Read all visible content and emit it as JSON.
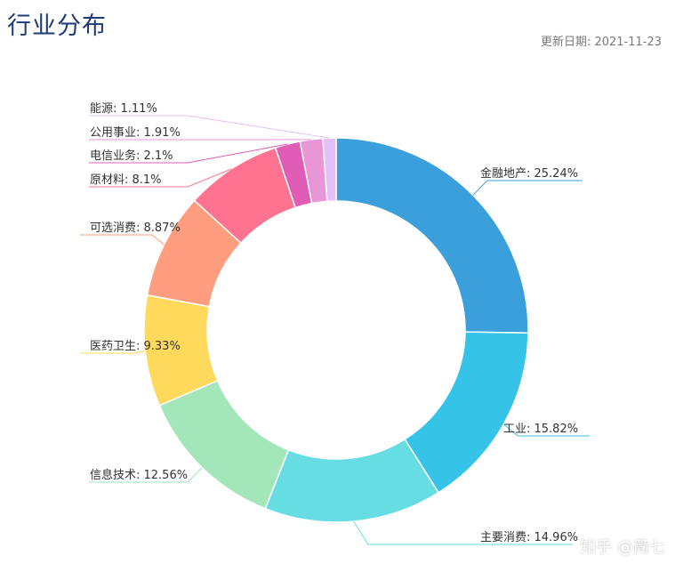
{
  "header": {
    "title": "行业分布",
    "update_label": "更新日期:",
    "update_date": "2021-11-23"
  },
  "watermark": "知乎 @简七",
  "chart_data": {
    "type": "pie",
    "donut": true,
    "legend": "none",
    "slices": [
      {
        "label": "金融地产",
        "value": 25.24,
        "display": "25.24%",
        "color": "#3a9fdb"
      },
      {
        "label": "工业",
        "value": 15.82,
        "display": "15.82%",
        "color": "#35c3e8"
      },
      {
        "label": "主要消费",
        "value": 14.96,
        "display": "14.96%",
        "color": "#66dde3"
      },
      {
        "label": "信息技术",
        "value": 12.56,
        "display": "12.56%",
        "color": "#a3e6b9"
      },
      {
        "label": "医药卫生",
        "value": 9.33,
        "display": "9.33%",
        "color": "#ffd95c"
      },
      {
        "label": "可选消费",
        "value": 8.87,
        "display": "8.87%",
        "color": "#ff9d7e"
      },
      {
        "label": "原材料",
        "value": 8.1,
        "display": "8.1%",
        "color": "#ff7391"
      },
      {
        "label": "电信业务",
        "value": 2.1,
        "display": "2.1%",
        "color": "#e15cb5"
      },
      {
        "label": "公用事业",
        "value": 1.91,
        "display": "1.91%",
        "color": "#e996d6"
      },
      {
        "label": "能源",
        "value": 1.11,
        "display": "1.11%",
        "color": "#e5c0f6"
      }
    ]
  }
}
